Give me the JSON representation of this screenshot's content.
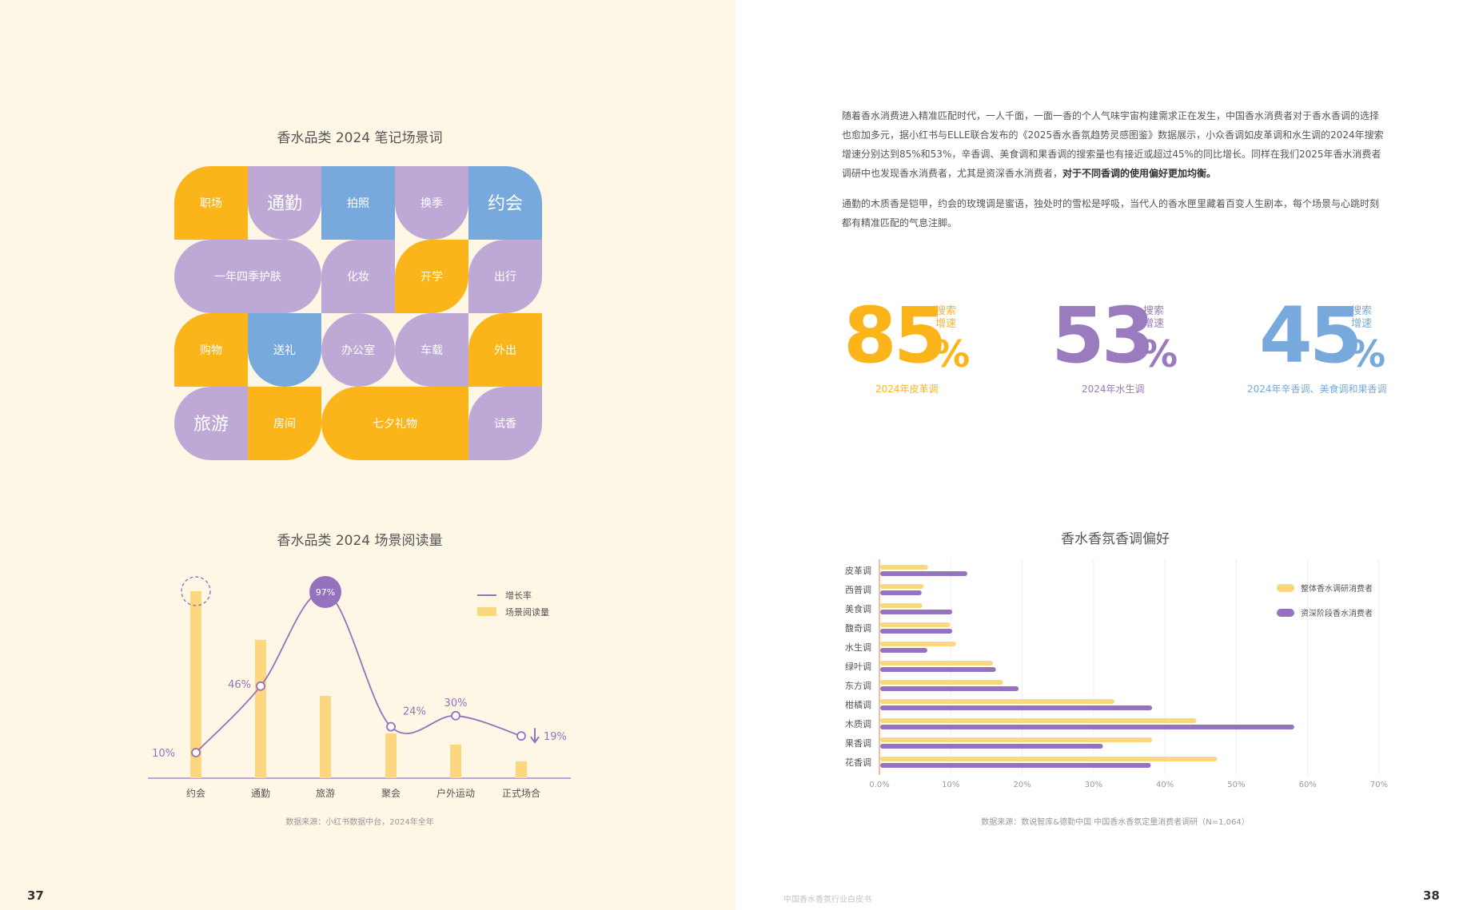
{
  "left_page": {
    "number": "37",
    "tiles": {
      "title": "香水品类 2024 笔记场景词",
      "items": [
        "职场",
        "通勤",
        "拍照",
        "换季",
        "约会",
        "一年四季护肤",
        "化妆",
        "开学",
        "出行",
        "购物",
        "送礼",
        "办公室",
        "车载",
        "外出",
        "旅游",
        "房间",
        "七夕礼物",
        "试香"
      ]
    },
    "reads_chart": {
      "title": "香水品类 2024 场景阅读量",
      "source": "数据来源：小红书数据中台，2024年全年",
      "legend": [
        "增长率",
        "场景阅读量"
      ]
    }
  },
  "right_page": {
    "number": "38",
    "footer": "中国香水香氛行业白皮书",
    "para1": "随着香水消费进入精准匹配时代，一人千面，一面一香的个人气味宇宙构建需求正在发生，中国香水消费者对于香水香调的选择也愈加多元，据小红书与ELLE联合发布的《2025香水香氛趋势灵感图鉴》数据展示，小众香调如皮革调和水生调的2024年搜索增速分别达到85%和53%，辛香调、美食调和果香调的搜索量也有接近或超过45%的同比增长。同样在我们2025年香水消费者调研中也发现香水消费者，尤其是资深香水消费者，",
    "para1_bold": "对于不同香调的使用偏好更加均衡。",
    "para2": "通勤的木质香是铠甲，约会的玫瑰调是蜜语，独处时的雪松是呼吸，当代人的香水匣里藏着百变人生剧本，每个场景与心跳时刻都有精准匹配的气息注脚。",
    "stats": [
      {
        "value": "85",
        "percent": "%",
        "label_line1": "搜索",
        "label_line2": "增速",
        "desc": "2024年皮革调",
        "color": "#fbb51a"
      },
      {
        "value": "53",
        "percent": "%",
        "label_line1": "搜索",
        "label_line2": "增速",
        "desc": "2024年水生调",
        "color": "#9a7bbd"
      },
      {
        "value": "45",
        "percent": "%",
        "label_line1": "搜索",
        "label_line2": "增速",
        "desc": "2024年辛香调、美食调和果香调",
        "color": "#78a9dc"
      }
    ],
    "pref_chart": {
      "title": "香水香氛香调偏好",
      "source": "数据来源：数说智库&德勤中国 中国香水香氛定量消费者调研（N=1,064）"
    }
  },
  "colors": {
    "yellow": "#fbb51a",
    "purple": "#bea9d6",
    "blue": "#78a9dc",
    "bar_yellow": "#fcd77f",
    "bar_purple": "#9572bd"
  },
  "chart_data": [
    {
      "type": "bar",
      "title": "香水品类 2024 场景阅读量",
      "categories": [
        "约会",
        "通勤",
        "旅游",
        "聚会",
        "户外运动",
        "正式场合"
      ],
      "series": [
        {
          "name": "场景阅读量",
          "values": [
            100,
            74,
            44,
            24,
            18,
            9
          ]
        },
        {
          "name": "增长率",
          "values": [
            10,
            46,
            97,
            24,
            30,
            19
          ],
          "labels": [
            "10%",
            "46%",
            "97%",
            "24%",
            "30%",
            "19%"
          ]
        }
      ]
    },
    {
      "type": "bar",
      "title": "香水香氛香调偏好",
      "categories": [
        "皮革调",
        "西普调",
        "美食调",
        "馥奇调",
        "水生调",
        "绿叶调",
        "东方调",
        "柑橘调",
        "木质调",
        "果香调",
        "花香调"
      ],
      "series": [
        {
          "name": "整体香水调研消费者",
          "values": [
            6.7,
            6.1,
            5.9,
            9.8,
            10.6,
            15.8,
            17.2,
            32.8,
            44.3,
            38.1,
            47.2
          ]
        },
        {
          "name": "资深阶段香水消费者",
          "values": [
            12.2,
            5.8,
            10.1,
            10.1,
            6.6,
            16.2,
            19.4,
            38.1,
            58.0,
            31.2,
            37.9
          ]
        }
      ],
      "xlim": [
        0,
        70
      ],
      "xticks": [
        "0.0%",
        "10%",
        "20%",
        "30%",
        "40%",
        "50%",
        "60%",
        "70%"
      ]
    }
  ]
}
